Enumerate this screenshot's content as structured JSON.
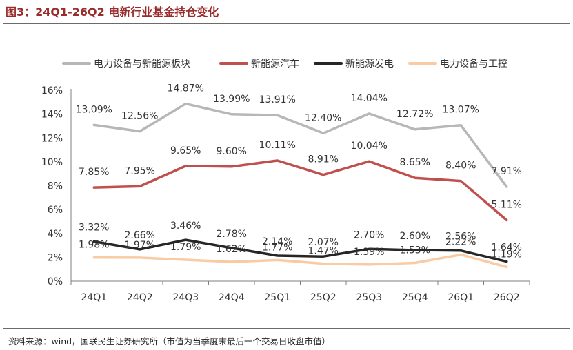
{
  "header": {
    "title": "图3：24Q1-26Q2 电新行业基金持仓变化"
  },
  "footer": {
    "source": "资料来源：wind，国联民生证券研究所（市值为当季度末最后一个交易日收盘市值）"
  },
  "chart_data": {
    "type": "line",
    "categories": [
      "24Q1",
      "24Q2",
      "24Q3",
      "24Q4",
      "25Q1",
      "25Q2",
      "25Q3",
      "25Q4",
      "26Q1",
      "26Q2"
    ],
    "ylim": [
      0,
      16
    ],
    "yticks": [
      "0%",
      "2%",
      "4%",
      "6%",
      "8%",
      "10%",
      "12%",
      "14%",
      "16%"
    ],
    "grid": false,
    "legend_position": "top",
    "series": [
      {
        "name": "电力设备与新能源板块",
        "color": "#b7b7b7",
        "values": [
          13.09,
          12.56,
          14.87,
          13.99,
          13.91,
          12.4,
          14.04,
          12.72,
          13.07,
          7.91
        ],
        "labels": [
          "13.09%",
          "12.56%",
          "14.87%",
          "13.99%",
          "13.91%",
          "12.40%",
          "14.04%",
          "12.72%",
          "13.07%",
          "7.91%"
        ]
      },
      {
        "name": "新能源汽车",
        "color": "#c0504d",
        "values": [
          7.85,
          7.95,
          9.65,
          9.6,
          10.11,
          8.91,
          10.04,
          8.65,
          8.4,
          5.11
        ],
        "labels": [
          "7.85%",
          "7.95%",
          "9.65%",
          "9.60%",
          "10.11%",
          "8.91%",
          "10.04%",
          "8.65%",
          "8.40%",
          "5.11%"
        ]
      },
      {
        "name": "新能源发电",
        "color": "#262626",
        "values": [
          3.32,
          2.66,
          3.46,
          2.78,
          2.14,
          2.07,
          2.7,
          2.6,
          2.56,
          1.64
        ],
        "labels": [
          "3.32%",
          "2.66%",
          "3.46%",
          "2.78%",
          "2.14%",
          "2.07%",
          "2.70%",
          "2.60%",
          "2.56%",
          "1.64%"
        ]
      },
      {
        "name": "电力设备与工控",
        "color": "#f9cba5",
        "values": [
          1.98,
          1.97,
          1.79,
          1.62,
          1.77,
          1.47,
          1.39,
          1.53,
          2.22,
          1.19
        ],
        "labels": [
          "1.98%",
          "1.97%",
          "1.79%",
          "1.62%",
          "1.77%",
          "1.47%",
          "1.39%",
          "1.53%",
          "2.22%",
          "1.19%"
        ]
      }
    ]
  }
}
